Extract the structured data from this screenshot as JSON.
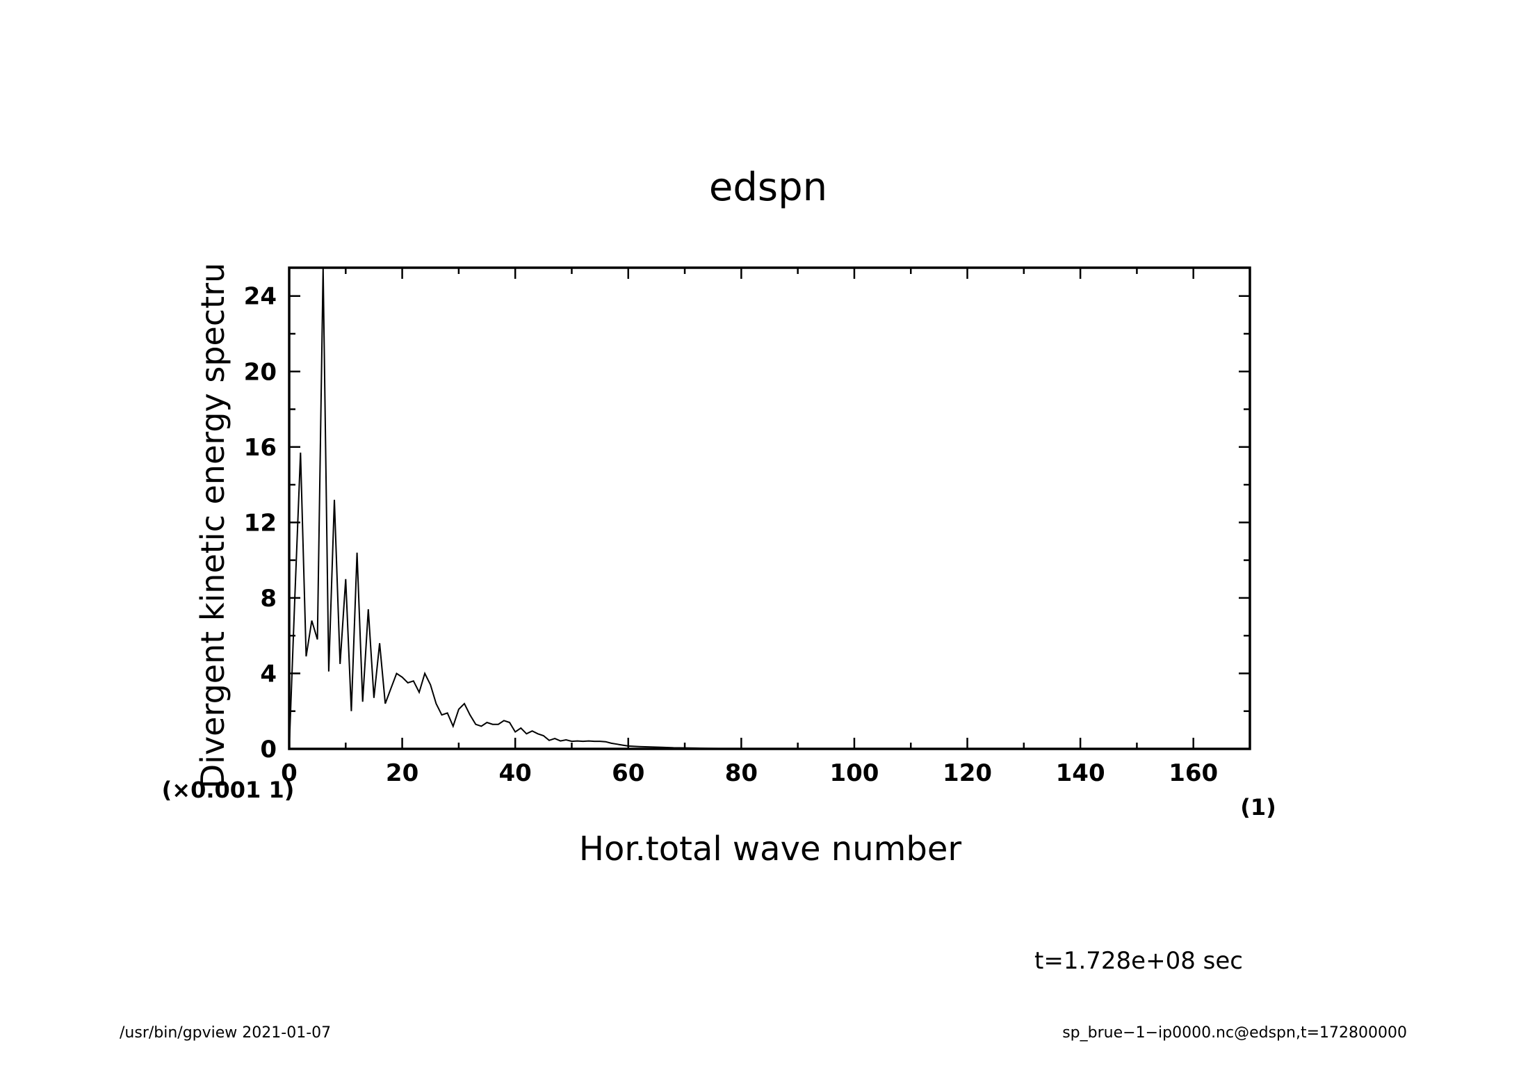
{
  "chart_data": {
    "type": "line",
    "title": "edspn",
    "xlabel": "Hor.total wave number",
    "ylabel": "Divergent kinetic energy spectru",
    "x_unit": "(1)",
    "y_unit": "(×0.001 1)",
    "xlim": [
      0,
      170
    ],
    "ylim": [
      0,
      25.5
    ],
    "x_ticks": [
      0,
      20,
      40,
      60,
      80,
      100,
      120,
      140,
      160
    ],
    "y_ticks": [
      0,
      4,
      8,
      12,
      16,
      20,
      24
    ],
    "grid": false,
    "series": [
      {
        "x": [
          0,
          1,
          2,
          3,
          4,
          5,
          6,
          7,
          8,
          9,
          10,
          11,
          12,
          13,
          14,
          15,
          16,
          17,
          18,
          19,
          20,
          21,
          22,
          23,
          24,
          25,
          26,
          27,
          28,
          29,
          30,
          31,
          32,
          33,
          34,
          35,
          36,
          37,
          38,
          39,
          40,
          41,
          42,
          43,
          44,
          45,
          46,
          47,
          48,
          49,
          50,
          51,
          52,
          53,
          54,
          55,
          56,
          57,
          58,
          59,
          60,
          62,
          64,
          66,
          68,
          70,
          72,
          74,
          76,
          78,
          80,
          85,
          90,
          100,
          110,
          120,
          130,
          140,
          150,
          160,
          170
        ],
        "y": [
          0.0,
          8.0,
          15.7,
          4.9,
          6.8,
          5.8,
          25.5,
          4.1,
          13.2,
          4.5,
          9.0,
          2.0,
          10.4,
          2.5,
          7.4,
          2.7,
          5.6,
          2.4,
          3.2,
          4.0,
          3.8,
          3.5,
          3.6,
          3.0,
          4.0,
          3.4,
          2.4,
          1.8,
          1.9,
          1.2,
          2.1,
          2.4,
          1.8,
          1.3,
          1.2,
          1.4,
          1.3,
          1.3,
          1.5,
          1.4,
          0.9,
          1.1,
          0.8,
          0.95,
          0.8,
          0.7,
          0.45,
          0.55,
          0.42,
          0.48,
          0.4,
          0.42,
          0.4,
          0.42,
          0.4,
          0.4,
          0.38,
          0.3,
          0.25,
          0.2,
          0.15,
          0.12,
          0.1,
          0.08,
          0.06,
          0.05,
          0.04,
          0.03,
          0.02,
          0.015,
          0.01,
          0.008,
          0.005,
          0.003,
          0.002,
          0.001,
          0.0005,
          0.0003,
          0.0002,
          0.0001,
          0.0
        ]
      }
    ]
  },
  "annotations": {
    "time": "t=1.728e+08 sec",
    "footer_left": "/usr/bin/gpview   2021-01-07",
    "footer_right": "sp_brue−1−ip0000.nc@edspn,t=172800000"
  }
}
